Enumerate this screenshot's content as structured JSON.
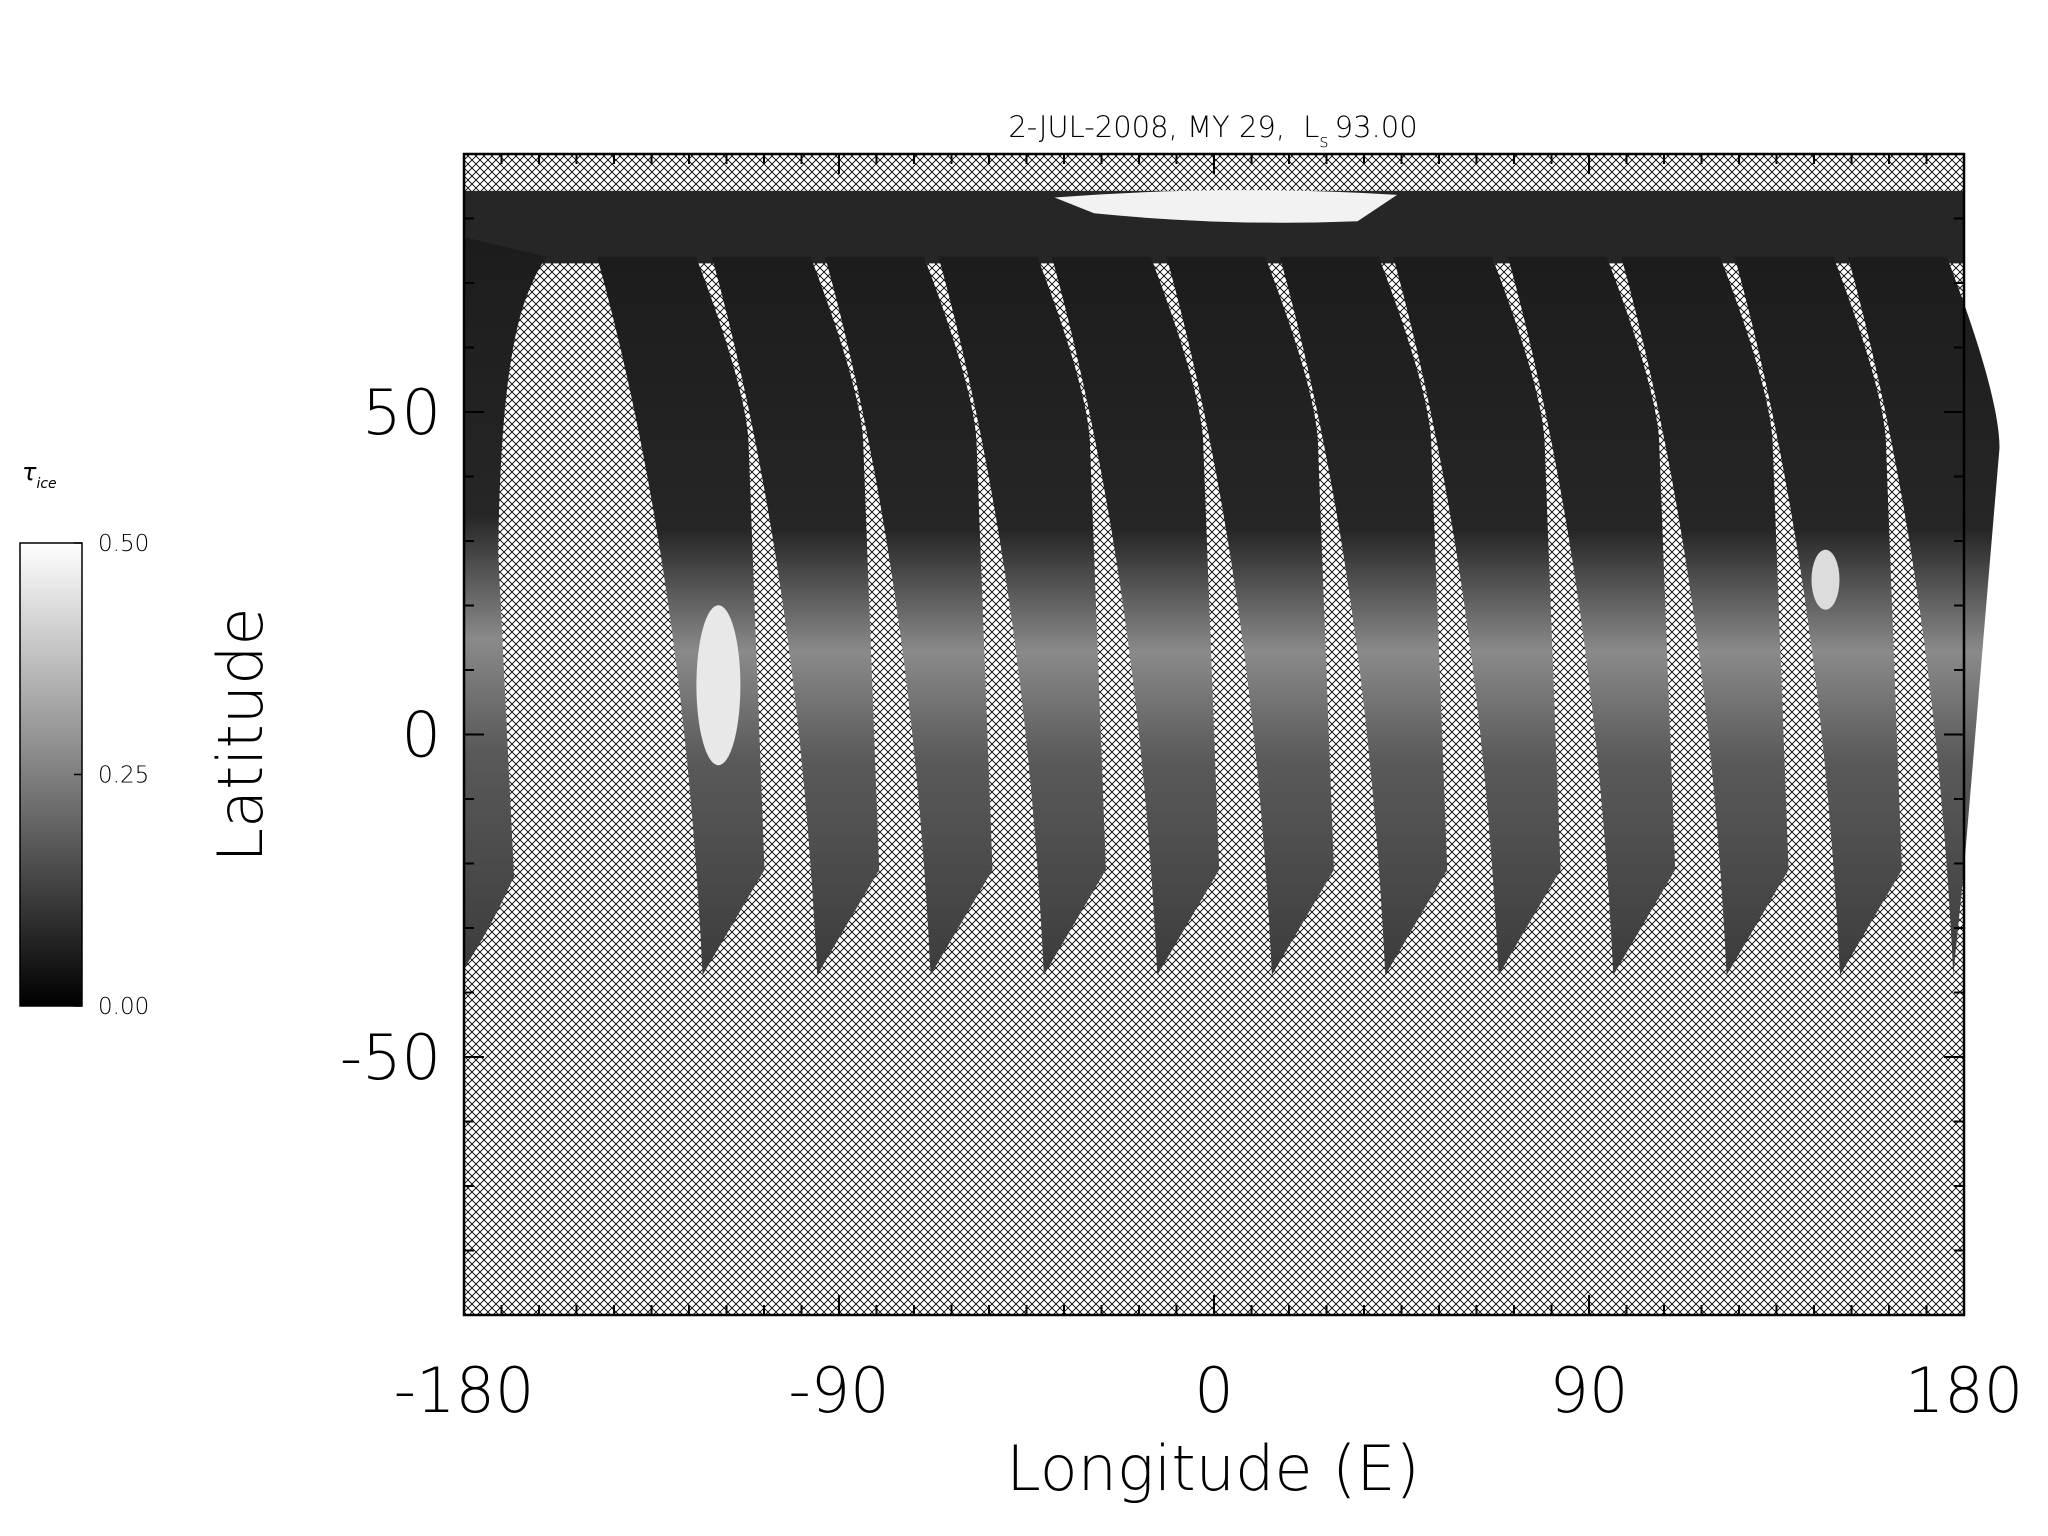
{
  "chart_data": {
    "type": "map",
    "title": "2-JUL-2008, MY 29,",
    "title_ls_symbol": "L",
    "title_ls_subscript": "s",
    "title_ls_value": "93.00",
    "x_label": "Longitude (E)",
    "y_label": "Latitude",
    "xlim": [
      -180,
      180
    ],
    "xticks": [
      -180,
      -90,
      0,
      90,
      180
    ],
    "xminorticks": [
      -171,
      -162,
      -153,
      -144,
      -135,
      -126,
      -117,
      -108,
      -99,
      -81,
      -72,
      -63,
      -54,
      -45,
      -36,
      -27,
      -18,
      -9,
      9,
      18,
      27,
      36,
      45,
      54,
      63,
      72,
      81,
      99,
      108,
      117,
      126,
      135,
      144,
      153,
      162,
      171
    ],
    "ylim": [
      -90,
      90
    ],
    "yticks": [
      -50,
      0,
      50
    ],
    "yminorticks": [
      -80,
      -70,
      -60,
      -40,
      -30,
      -20,
      -10,
      10,
      20,
      30,
      40,
      60,
      70,
      80
    ],
    "colorbar": {
      "label_symbol": "τ",
      "label_subscript": "ice",
      "lim": [
        0,
        0.5
      ],
      "ticks": [
        {
          "value": 0,
          "label": "0.00"
        },
        {
          "value": 0.25,
          "label": "0.25"
        },
        {
          "value": 0.5,
          "label": "0.50"
        }
      ],
      "colors": [
        "#000000",
        "#ffffff"
      ]
    }
  }
}
